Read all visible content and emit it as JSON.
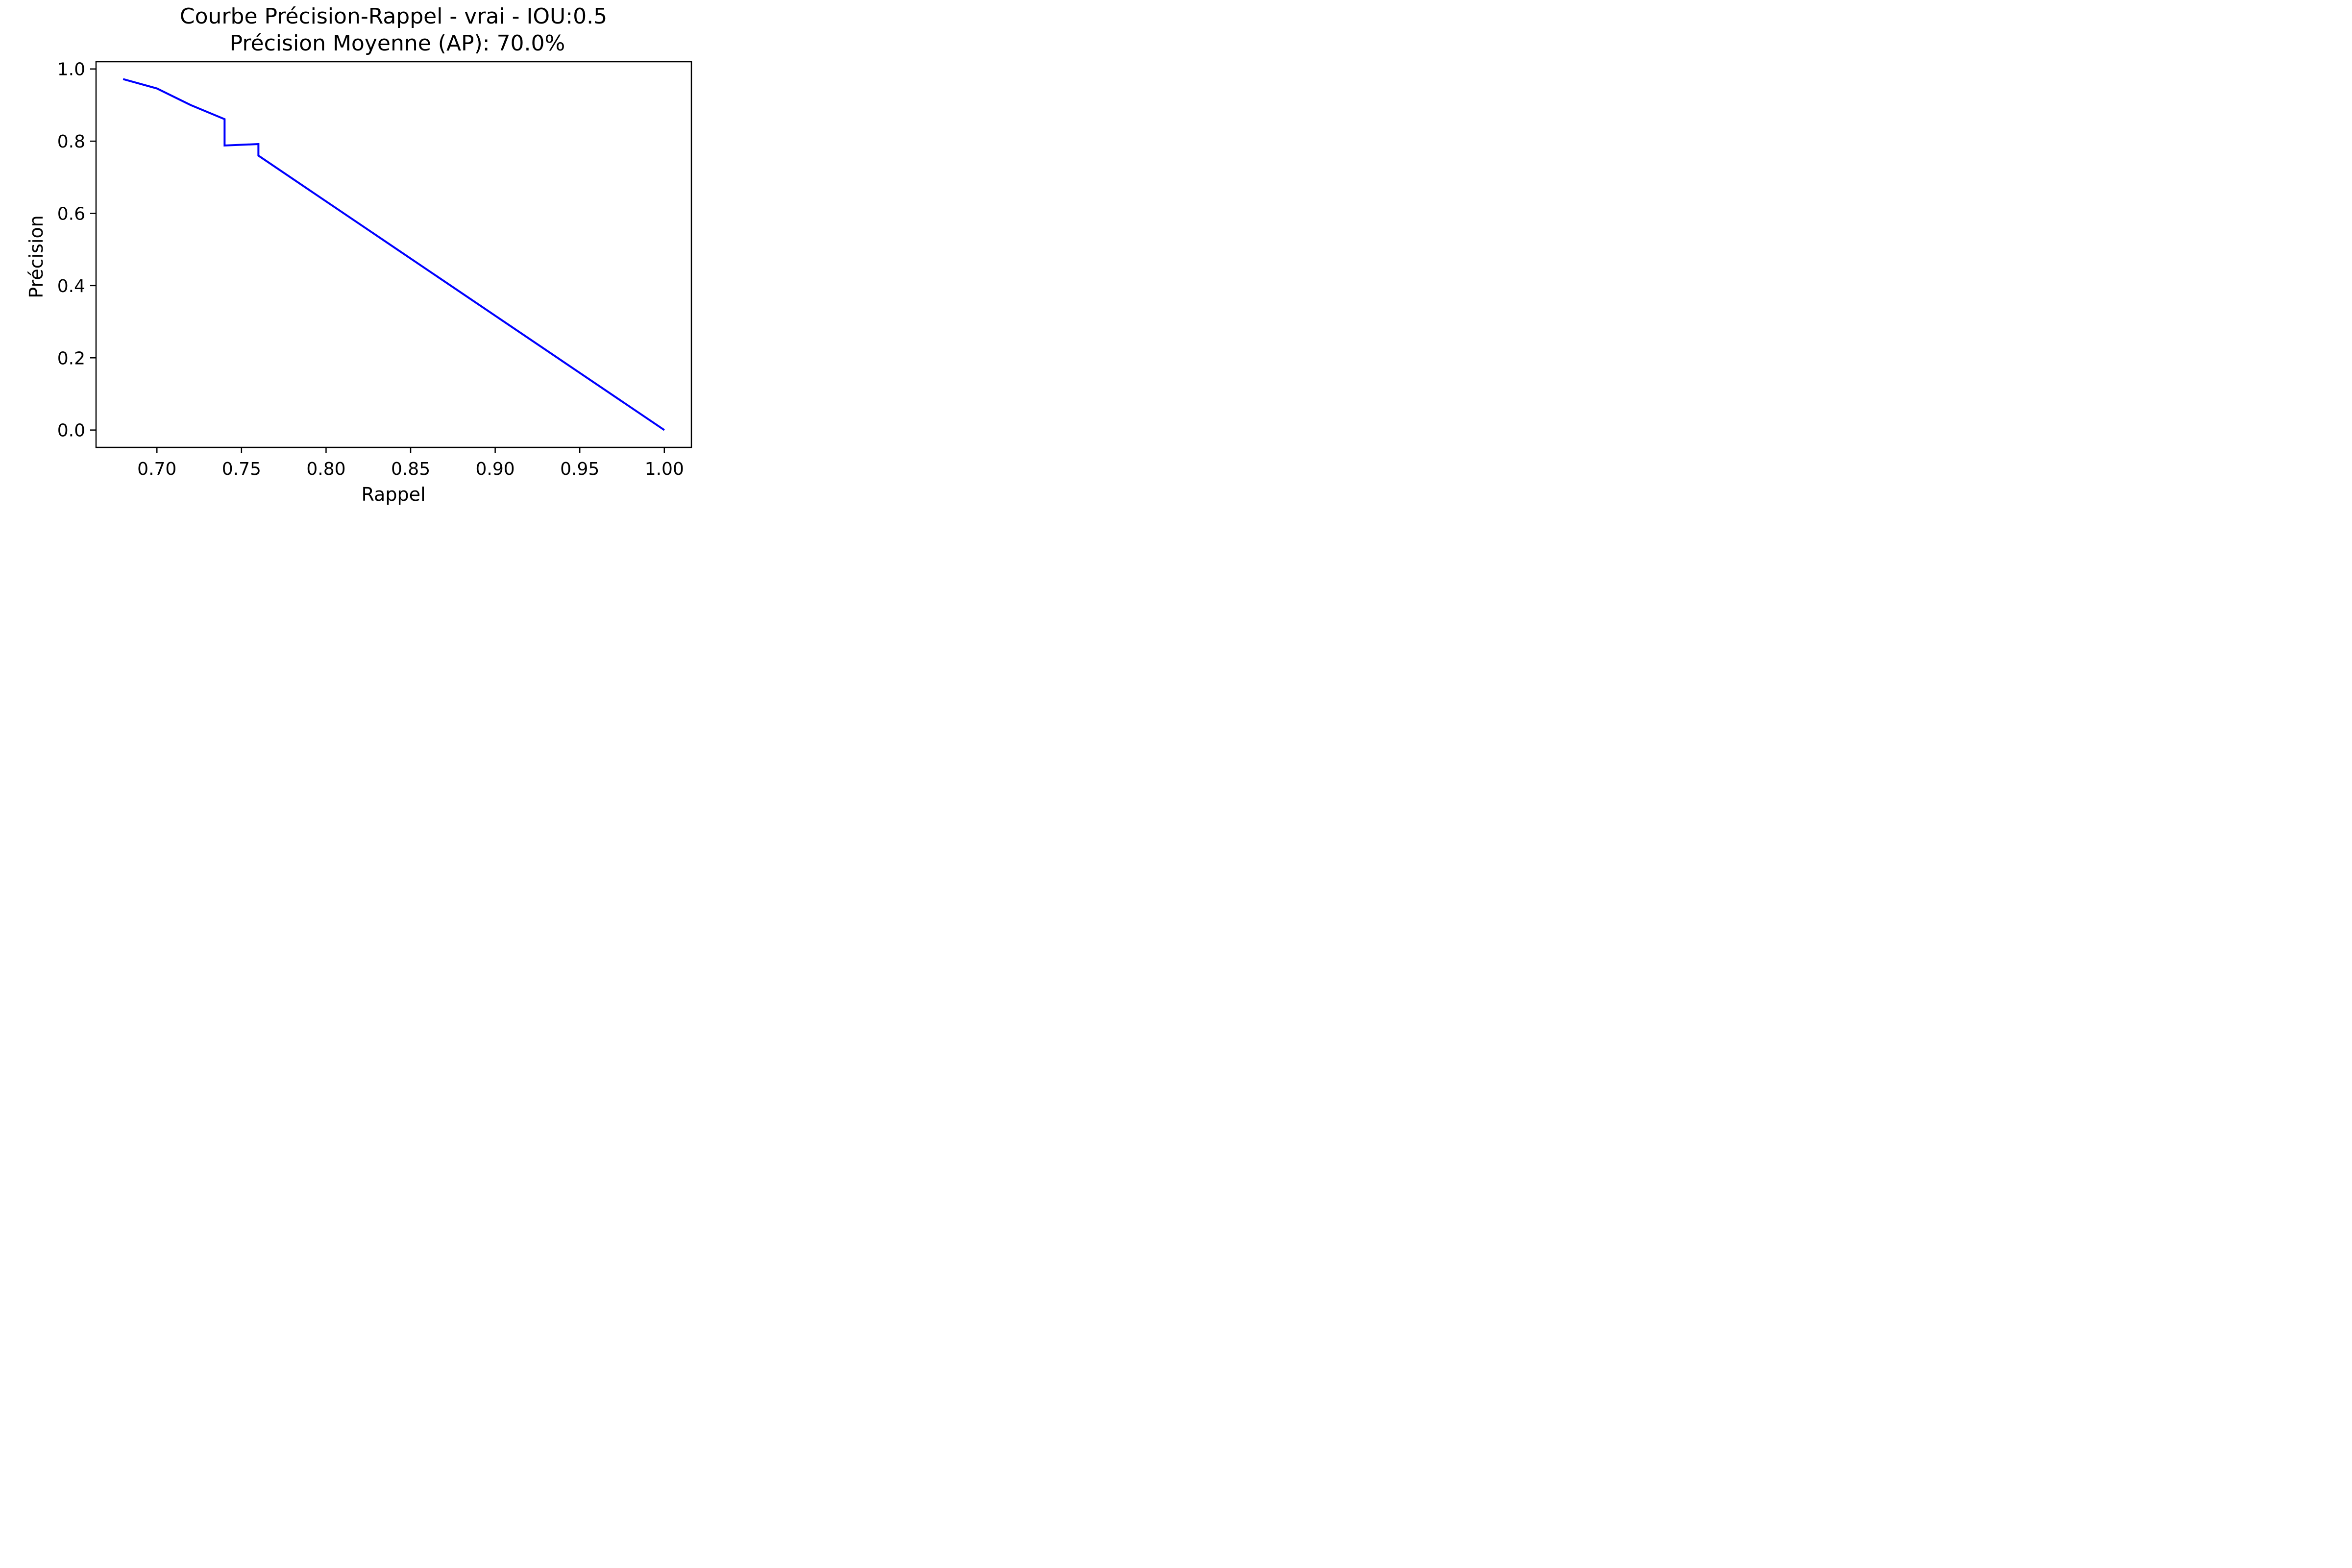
{
  "chart_data": {
    "type": "line",
    "title": "Courbe Précision-Rappel - vrai - IOU:0.5",
    "subtitle": "Précision Moyenne (AP): 70.0%",
    "xlabel": "Rappel",
    "ylabel": "Précision",
    "xlim": [
      0.664,
      1.016
    ],
    "ylim": [
      -0.048,
      1.02
    ],
    "xticks": [
      {
        "value": 0.7,
        "label": "0.70"
      },
      {
        "value": 0.75,
        "label": "0.75"
      },
      {
        "value": 0.8,
        "label": "0.80"
      },
      {
        "value": 0.85,
        "label": "0.85"
      },
      {
        "value": 0.9,
        "label": "0.90"
      },
      {
        "value": 0.95,
        "label": "0.95"
      },
      {
        "value": 1.0,
        "label": "1.00"
      }
    ],
    "yticks": [
      {
        "value": 0.0,
        "label": "0.0"
      },
      {
        "value": 0.2,
        "label": "0.2"
      },
      {
        "value": 0.4,
        "label": "0.4"
      },
      {
        "value": 0.6,
        "label": "0.6"
      },
      {
        "value": 0.8,
        "label": "0.8"
      },
      {
        "value": 1.0,
        "label": "1.0"
      }
    ],
    "grid": false,
    "series": [
      {
        "color": "#0000ff",
        "x": [
          0.68,
          0.7,
          0.72,
          0.74,
          0.74,
          0.76,
          0.76,
          1.0
        ],
        "y": [
          0.972,
          0.946,
          0.9,
          0.861,
          0.788,
          0.792,
          0.76,
          0.0
        ]
      }
    ]
  }
}
